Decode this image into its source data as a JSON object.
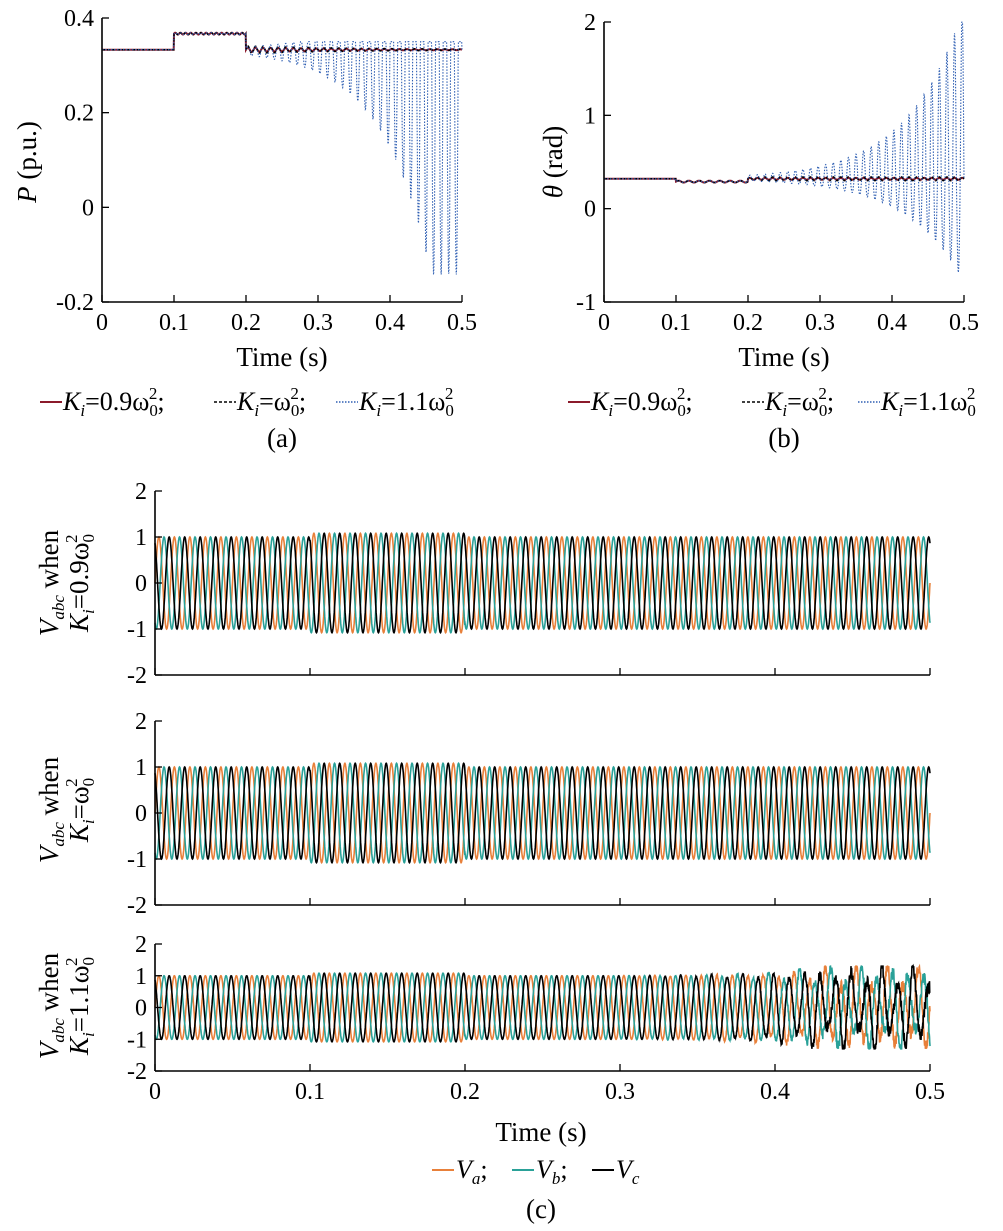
{
  "figure": {
    "panel_labels": [
      "(a)",
      "(b)",
      "(c)"
    ],
    "x_label": "Time (s)",
    "legend_ab": [
      {
        "sym": "K",
        "sub": "i",
        "expr": "=0.9ω",
        "sub2": "0",
        "sup": "2",
        "sep": ";"
      },
      {
        "sym": "K",
        "sub": "i",
        "expr": "=ω",
        "sub2": "0",
        "sup": "2",
        "sep": ";"
      },
      {
        "sym": "K",
        "sub": "i",
        "expr": "=1.1ω",
        "sub2": "0",
        "sup": "2",
        "sep": ""
      }
    ],
    "legend_c": [
      {
        "sym": "V",
        "sub": "a",
        "sep": ";"
      },
      {
        "sym": "V",
        "sub": "b",
        "sep": ";"
      },
      {
        "sym": "V",
        "sub": "c",
        "sep": ""
      }
    ],
    "colors": {
      "k09": "#8b1a2b",
      "k10": "#000000",
      "k11": "#2f5fb3",
      "va": "#e8803a",
      "vb": "#2aa198",
      "vc": "#000000"
    }
  },
  "chart_data": [
    {
      "id": "a",
      "type": "line",
      "ylabel_sym": "P",
      "ylabel_rest": " (p.u.)",
      "xlim": [
        0,
        0.5
      ],
      "ylim": [
        -0.2,
        0.4
      ],
      "xticks": [
        "0",
        "0.1",
        "0.2",
        "0.3",
        "0.4",
        "0.5"
      ],
      "yticks": [
        {
          "v": -0.2,
          "t": "-0.2"
        },
        {
          "v": 0,
          "t": "0"
        },
        {
          "v": 0.2,
          "t": "0.2"
        },
        {
          "v": 0.4,
          "t": "0.4"
        }
      ],
      "series": [
        {
          "key": "k09",
          "base": 0.333,
          "step": 0.367,
          "settle_amp": 0.005,
          "growth": 0
        },
        {
          "key": "k10",
          "base": 0.333,
          "step": 0.367,
          "settle_amp": 0.008,
          "growth": 0
        },
        {
          "key": "k11",
          "base": 0.333,
          "step": 0.367,
          "settle_amp": 0.004,
          "growth": 1,
          "final_min": -0.15,
          "final_max": 0.35
        }
      ]
    },
    {
      "id": "b",
      "type": "line",
      "ylabel_sym": "θ",
      "ylabel_rest": " (rad)",
      "xlim": [
        0,
        0.5
      ],
      "ylim": [
        -1,
        2
      ],
      "xticks": [
        "0",
        "0.1",
        "0.2",
        "0.3",
        "0.4",
        "0.5"
      ],
      "yticks": [
        {
          "v": -1,
          "t": "-1"
        },
        {
          "v": 0,
          "t": "0"
        },
        {
          "v": 1,
          "t": "1"
        },
        {
          "v": 2,
          "t": "2"
        }
      ],
      "series": [
        {
          "key": "k09",
          "base": 0.32,
          "dip": 0.29,
          "settle_amp": 0.01,
          "growth": 0
        },
        {
          "key": "k10",
          "base": 0.32,
          "dip": 0.29,
          "settle_amp": 0.02,
          "growth": 0
        },
        {
          "key": "k11",
          "base": 0.32,
          "dip": 0.29,
          "settle_amp": 0.02,
          "growth": 1,
          "final_min": -0.72,
          "final_max": 2.0
        }
      ]
    },
    {
      "id": "c1",
      "type": "line",
      "ylabel_line1": "V",
      "ylabel_line1_sub": "abc",
      "ylabel_line1_rest": " when",
      "ylabel_line2": "K",
      "ylabel_line2_sub": "i",
      "ylabel_line2_rest": "=0.9ω",
      "ylabel_line2_sub2": "0",
      "ylabel_line2_sup": "2",
      "xlim": [
        0,
        0.5
      ],
      "ylim": [
        -2,
        2
      ],
      "yticks": [
        {
          "v": -2,
          "t": "-2"
        },
        {
          "v": -1,
          "t": "-1"
        },
        {
          "v": 0,
          "t": "0"
        },
        {
          "v": 1,
          "t": "1"
        },
        {
          "v": 2,
          "t": "2"
        }
      ],
      "frequency_hz": 100,
      "amplitude": 1.0,
      "step_amplitude": 1.08,
      "unstable": false
    },
    {
      "id": "c2",
      "type": "line",
      "ylabel_line1": "V",
      "ylabel_line1_sub": "abc",
      "ylabel_line1_rest": " when",
      "ylabel_line2": "K",
      "ylabel_line2_sub": "i",
      "ylabel_line2_rest": "=ω",
      "ylabel_line2_sub2": "0",
      "ylabel_line2_sup": "2",
      "xlim": [
        0,
        0.5
      ],
      "ylim": [
        -2,
        2
      ],
      "yticks": [
        {
          "v": -2,
          "t": "-2"
        },
        {
          "v": -1,
          "t": "-1"
        },
        {
          "v": 0,
          "t": "0"
        },
        {
          "v": 1,
          "t": "1"
        },
        {
          "v": 2,
          "t": "2"
        }
      ],
      "frequency_hz": 100,
      "amplitude": 1.0,
      "step_amplitude": 1.08,
      "unstable": false
    },
    {
      "id": "c3",
      "type": "line",
      "ylabel_line1": "V",
      "ylabel_line1_sub": "abc",
      "ylabel_line1_rest": " when",
      "ylabel_line2": "K",
      "ylabel_line2_sub": "i",
      "ylabel_line2_rest": "=1.1ω",
      "ylabel_line2_sub2": "0",
      "ylabel_line2_sup": "2",
      "xlim": [
        0,
        0.5
      ],
      "ylim": [
        -2,
        2
      ],
      "xticks": [
        "0",
        "0.1",
        "0.2",
        "0.3",
        "0.4",
        "0.5"
      ],
      "yticks": [
        {
          "v": -2,
          "t": "-2"
        },
        {
          "v": -1,
          "t": "-1"
        },
        {
          "v": 0,
          "t": "0"
        },
        {
          "v": 1,
          "t": "1"
        },
        {
          "v": 2,
          "t": "2"
        }
      ],
      "frequency_hz": 100,
      "amplitude": 1.0,
      "step_amplitude": 1.08,
      "unstable": true
    }
  ]
}
